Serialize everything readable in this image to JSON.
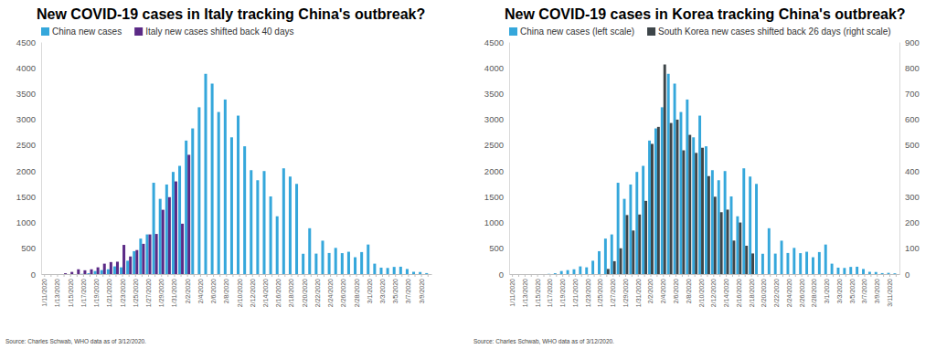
{
  "chart_data": [
    {
      "type": "bar",
      "title": "New COVID-19 cases in Italy tracking China's outbreak?",
      "source": "Source: Charles Schwab, WHO data as of 3/12/2020.",
      "categories": [
        "1/11/2020",
        null,
        "1/13/2020",
        null,
        "1/15/2020",
        null,
        "1/17/2020",
        null,
        "1/19/2020",
        null,
        "1/21/2020",
        null,
        "1/23/2020",
        null,
        "1/25/2020",
        null,
        "1/27/2020",
        null,
        "1/29/2020",
        null,
        "1/31/2020",
        null,
        "2/2/2020",
        null,
        "2/4/2020",
        null,
        "2/6/2020",
        null,
        "2/8/2020",
        null,
        "2/10/2020",
        null,
        "2/12/2020",
        null,
        "2/14/2020",
        null,
        "2/16/2020",
        null,
        "2/18/2020",
        null,
        "2/20/2020",
        null,
        "2/22/2020",
        null,
        "2/24/2020",
        null,
        "2/26/2020",
        null,
        "2/28/2020",
        null,
        "3/1/2020",
        null,
        "3/3/2020",
        null,
        "3/5/2020",
        null,
        "3/7/2020",
        null,
        "3/9/2020",
        null
      ],
      "series": [
        {
          "name": "China new cases",
          "color": "#35a7db",
          "values": [
            0,
            0,
            0,
            0,
            0,
            0,
            4,
            17,
            59,
            77,
            93,
            149,
            131,
            259,
            444,
            688,
            769,
            1771,
            1459,
            1737,
            1981,
            2099,
            2589,
            2825,
            3235,
            3884,
            3694,
            3143,
            3385,
            2652,
            3073,
            2478,
            2015,
            1820,
            1998,
            1506,
            1121,
            2051,
            1891,
            1749,
            394,
            889,
            397,
            648,
            409,
            508,
            406,
            433,
            327,
            427,
            573,
            202,
            125,
            119,
            139,
            143,
            99,
            44,
            40,
            19
          ]
        },
        {
          "name": "Italy new cases shifted back 40 days",
          "color": "#5b2a86",
          "values": [
            null,
            null,
            null,
            17,
            42,
            93,
            74,
            93,
            131,
            202,
            233,
            240,
            566,
            342,
            466,
            587,
            769,
            778,
            1247,
            1492,
            1797,
            977,
            2313,
            null,
            null,
            null,
            null,
            null,
            null,
            null,
            null,
            null,
            null,
            null,
            null,
            null,
            null,
            null,
            null,
            null,
            null,
            null,
            null,
            null,
            null,
            null,
            null,
            null,
            null,
            null,
            null,
            null,
            null,
            null,
            null,
            null,
            null,
            null,
            null,
            null
          ]
        }
      ],
      "ylim": [
        0,
        4500
      ],
      "yticks": [
        0,
        500,
        1000,
        1500,
        2000,
        2500,
        3000,
        3500,
        4000,
        4500
      ],
      "grid": false,
      "legend": "top",
      "stacked": false
    },
    {
      "type": "bar",
      "title": "New COVID-19 cases in Korea tracking China's outbreak?",
      "source": "Source: Charles Schwab, WHO data as of 3/12/2020.",
      "categories": [
        "1/11/2020",
        null,
        "1/13/2020",
        null,
        "1/15/2020",
        null,
        "1/17/2020",
        null,
        "1/19/2020",
        null,
        "1/21/2020",
        null,
        "1/23/2020",
        null,
        "1/25/2020",
        null,
        "1/27/2020",
        null,
        "1/29/2020",
        null,
        "1/31/2020",
        null,
        "2/2/2020",
        null,
        "2/4/2020",
        null,
        "2/6/2020",
        null,
        "2/8/2020",
        null,
        "2/10/2020",
        null,
        "2/12/2020",
        null,
        "2/14/2020",
        null,
        "2/16/2020",
        null,
        "2/18/2020",
        null,
        "2/20/2020",
        null,
        "2/22/2020",
        null,
        "2/24/2020",
        null,
        "2/26/2020",
        null,
        "2/28/2020",
        null,
        "3/1/2020",
        null,
        "3/3/2020",
        null,
        "3/5/2020",
        null,
        "3/7/2020",
        null,
        "3/9/2020",
        null,
        "3/11/2020",
        null
      ],
      "series": [
        {
          "name": "China new cases (left scale)",
          "color": "#35a7db",
          "values": [
            0,
            0,
            0,
            0,
            0,
            0,
            4,
            17,
            59,
            77,
            93,
            149,
            131,
            259,
            444,
            688,
            769,
            1771,
            1459,
            1737,
            1981,
            2099,
            2589,
            2825,
            3235,
            3884,
            3694,
            3143,
            3385,
            2652,
            3073,
            2478,
            2015,
            1820,
            1998,
            1506,
            1121,
            2051,
            1891,
            1749,
            394,
            889,
            397,
            648,
            409,
            508,
            406,
            433,
            327,
            427,
            573,
            202,
            125,
            119,
            139,
            143,
            99,
            44,
            40,
            19,
            24,
            15
          ]
        },
        {
          "name": "South Korea new cases shifted back 26 days (right scale)",
          "color": "#3d4549",
          "axis": "y2",
          "values": [
            null,
            null,
            null,
            null,
            null,
            null,
            null,
            null,
            null,
            null,
            null,
            null,
            null,
            null,
            null,
            20,
            50,
            100,
            229,
            169,
            231,
            284,
            505,
            571,
            813,
            586,
            599,
            480,
            540,
            470,
            490,
            380,
            300,
            240,
            250,
            130,
            200,
            110,
            80,
            null,
            null,
            null,
            null,
            null,
            null,
            null,
            null,
            null,
            null,
            null,
            null,
            null,
            null,
            null,
            null,
            null,
            null,
            null,
            null,
            null,
            null,
            null
          ]
        }
      ],
      "ylim": [
        0,
        4500
      ],
      "yticks": [
        0,
        500,
        1000,
        1500,
        2000,
        2500,
        3000,
        3500,
        4000,
        4500
      ],
      "y2lim": [
        0,
        900
      ],
      "y2ticks": [
        0,
        100,
        200,
        300,
        400,
        500,
        600,
        700,
        800,
        900
      ],
      "grid": false,
      "legend": "top",
      "stacked": false
    }
  ]
}
